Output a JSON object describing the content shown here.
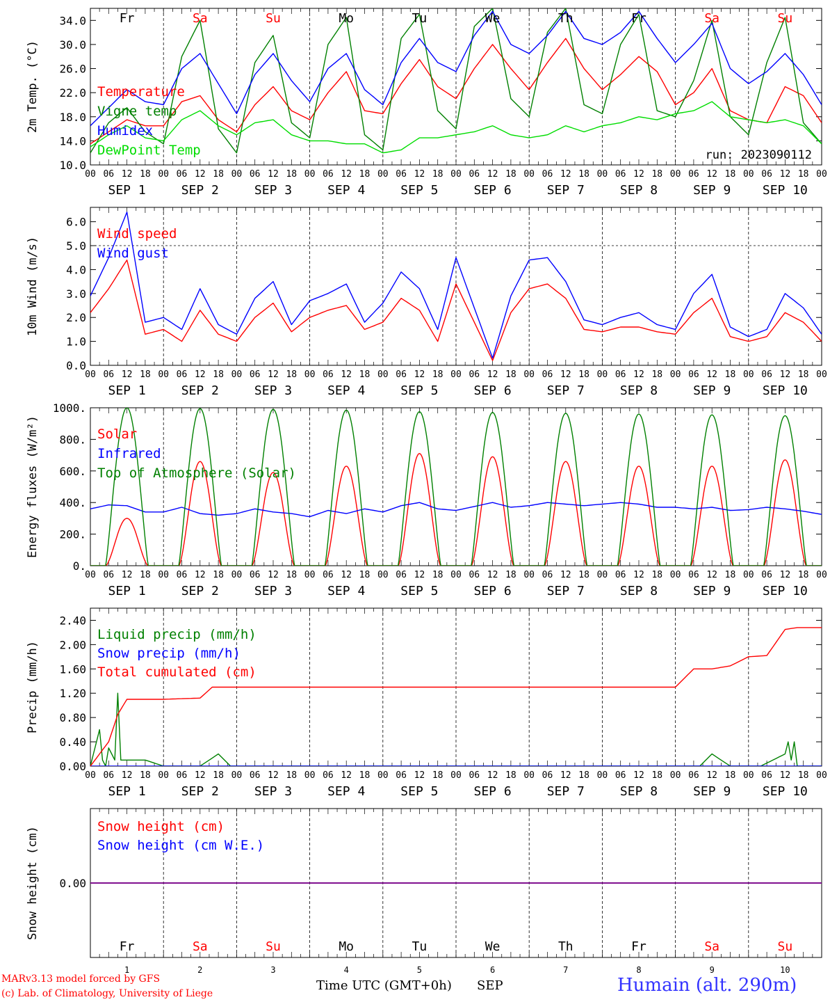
{
  "run_label": "run: 2023090112",
  "day_names": [
    "Fr",
    "Sa",
    "Su",
    "Mo",
    "Tu",
    "We",
    "Th",
    "Fr",
    "Sa",
    "Su"
  ],
  "weekend_flags": [
    false,
    true,
    true,
    false,
    false,
    false,
    false,
    false,
    true,
    true
  ],
  "date_labels": [
    "SEP  1",
    "SEP  2",
    "SEP  3",
    "SEP  4",
    "SEP  5",
    "SEP  6",
    "SEP  7",
    "SEP  8",
    "SEP  9",
    "SEP 10"
  ],
  "hour_ticks": [
    "00",
    "06",
    "12",
    "18"
  ],
  "day_numbers": [
    "1",
    "2",
    "3",
    "4",
    "5",
    "6",
    "7",
    "8",
    "9",
    "10"
  ],
  "footer": {
    "credit_model": "MARv3.13 model forced by GFS",
    "credit_lab": "(c) Lab. of Climatology, University of Liege",
    "xaxis_title": "Time UTC (GMT+0h)",
    "month": "SEP",
    "station": "Humain (alt. 290m)"
  },
  "colors": {
    "red": "#ff0000",
    "green": "#008000",
    "blue": "#0000ff",
    "lightgreen": "#00dd00",
    "purple": "#800080"
  },
  "chart_data": [
    {
      "id": "temp",
      "type": "line",
      "ylabel": "2m Temp. (°C)",
      "ylim": [
        10,
        36
      ],
      "yticks": [
        10.0,
        14.0,
        18.0,
        22.0,
        26.0,
        30.0,
        34.0
      ],
      "tick_decimals": 1,
      "x": [
        0,
        6,
        12,
        18,
        24,
        30,
        36,
        42,
        48,
        54,
        60,
        66,
        72,
        78,
        84,
        90,
        96,
        102,
        108,
        114,
        120,
        126,
        132,
        138,
        144,
        150,
        156,
        162,
        168,
        174,
        180,
        186,
        192,
        198,
        204,
        210,
        216,
        222,
        228,
        234,
        240
      ],
      "series": [
        {
          "name": "Temperature",
          "color": "red",
          "values": [
            13.5,
            15.5,
            17.5,
            16.5,
            16.5,
            20.5,
            21.5,
            17.5,
            15.5,
            20.0,
            23.0,
            19.0,
            17.5,
            22.0,
            25.5,
            19.0,
            18.5,
            23.5,
            27.5,
            23.0,
            21.0,
            26.0,
            30.0,
            26.0,
            22.5,
            27.0,
            31.0,
            26.0,
            22.5,
            25.0,
            28.0,
            25.5,
            20.0,
            22.0,
            26.0,
            19.0,
            17.5,
            17.0,
            23.0,
            21.5,
            17.0
          ]
        },
        {
          "name": "Vigne temp",
          "color": "green",
          "values": [
            12.0,
            17.0,
            19.5,
            15.5,
            13.5,
            28.0,
            34.0,
            16.0,
            12.0,
            27.0,
            31.5,
            17.0,
            14.5,
            30.0,
            34.5,
            15.0,
            12.5,
            31.0,
            35.0,
            19.0,
            16.0,
            33.0,
            36.0,
            21.0,
            18.0,
            32.0,
            36.0,
            20.0,
            18.5,
            30.0,
            35.0,
            19.0,
            18.0,
            24.0,
            34.0,
            18.0,
            15.0,
            27.0,
            34.5,
            17.0,
            13.5
          ]
        },
        {
          "name": "Humidex",
          "color": "blue",
          "values": [
            16.5,
            19.5,
            22.5,
            20.5,
            20.0,
            26.0,
            28.5,
            23.5,
            18.5,
            25.0,
            28.5,
            24.0,
            20.5,
            26.0,
            28.5,
            22.5,
            20.0,
            27.0,
            31.0,
            27.0,
            25.5,
            31.5,
            35.5,
            30.0,
            28.5,
            31.5,
            35.5,
            31.0,
            30.0,
            32.0,
            35.5,
            31.0,
            27.0,
            30.0,
            33.5,
            26.0,
            23.5,
            25.5,
            28.5,
            25.0,
            20.0
          ]
        },
        {
          "name": "DewPoint Temp",
          "color": "lightgreen",
          "values": [
            13.0,
            15.0,
            16.5,
            14.5,
            14.0,
            17.5,
            19.0,
            16.5,
            15.0,
            17.0,
            17.5,
            15.0,
            14.0,
            14.0,
            13.5,
            13.5,
            12.0,
            12.5,
            14.5,
            14.5,
            15.0,
            15.5,
            16.5,
            15.0,
            14.5,
            15.0,
            16.5,
            15.5,
            16.5,
            17.0,
            18.0,
            17.5,
            18.5,
            19.0,
            20.5,
            18.0,
            17.5,
            17.0,
            17.5,
            16.5,
            13.5
          ]
        }
      ]
    },
    {
      "id": "wind",
      "type": "line",
      "ylabel": "10m Wind (m/s)",
      "ylim": [
        0,
        6.6
      ],
      "yticks": [
        0.0,
        1.0,
        2.0,
        3.0,
        4.0,
        5.0,
        6.0
      ],
      "tick_decimals": 1,
      "ref_line": 5.0,
      "x": [
        0,
        6,
        12,
        18,
        24,
        30,
        36,
        42,
        48,
        54,
        60,
        66,
        72,
        78,
        84,
        90,
        96,
        102,
        108,
        114,
        120,
        126,
        132,
        138,
        144,
        150,
        156,
        162,
        168,
        174,
        180,
        186,
        192,
        198,
        204,
        210,
        216,
        222,
        228,
        234,
        240
      ],
      "series": [
        {
          "name": "Wind speed",
          "color": "red",
          "values": [
            2.2,
            3.2,
            4.4,
            1.3,
            1.5,
            1.0,
            2.3,
            1.3,
            1.0,
            2.0,
            2.6,
            1.4,
            2.0,
            2.3,
            2.5,
            1.5,
            1.8,
            2.8,
            2.3,
            1.0,
            3.4,
            1.8,
            0.2,
            2.2,
            3.2,
            3.4,
            2.8,
            1.5,
            1.4,
            1.6,
            1.6,
            1.4,
            1.3,
            2.2,
            2.8,
            1.2,
            1.0,
            1.2,
            2.2,
            1.8,
            1.0
          ]
        },
        {
          "name": "Wind gust",
          "color": "blue",
          "values": [
            2.9,
            4.5,
            6.4,
            1.8,
            2.0,
            1.5,
            3.2,
            1.7,
            1.3,
            2.8,
            3.5,
            1.7,
            2.7,
            3.0,
            3.4,
            1.8,
            2.6,
            3.9,
            3.2,
            1.5,
            4.5,
            2.4,
            0.3,
            2.9,
            4.4,
            4.5,
            3.5,
            1.9,
            1.7,
            2.0,
            2.2,
            1.7,
            1.5,
            3.0,
            3.8,
            1.6,
            1.2,
            1.5,
            3.0,
            2.4,
            1.3
          ]
        }
      ]
    },
    {
      "id": "energy",
      "type": "line",
      "ylabel": "Energy fluxes (W/m²)",
      "ylim": [
        0,
        1000
      ],
      "yticks": [
        0,
        200,
        400,
        600,
        800,
        1000
      ],
      "tick_decimals": -1,
      "series": [
        {
          "name": "Solar",
          "color": "red",
          "daily_peak": [
            300,
            660,
            590,
            630,
            710,
            690,
            660,
            630,
            630,
            670
          ]
        },
        {
          "name": "Infrared",
          "color": "blue",
          "values": [
            360,
            385,
            380,
            340,
            340,
            370,
            330,
            320,
            330,
            360,
            340,
            330,
            310,
            350,
            330,
            360,
            340,
            380,
            400,
            360,
            350,
            375,
            400,
            370,
            380,
            400,
            390,
            380,
            390,
            400,
            390,
            370,
            370,
            360,
            370,
            350,
            355,
            370,
            360,
            345,
            325
          ],
          "x": [
            0,
            6,
            12,
            18,
            24,
            30,
            36,
            42,
            48,
            54,
            60,
            66,
            72,
            78,
            84,
            90,
            96,
            102,
            108,
            114,
            120,
            126,
            132,
            138,
            144,
            150,
            156,
            162,
            168,
            174,
            180,
            186,
            192,
            198,
            204,
            210,
            216,
            222,
            228,
            234,
            240
          ]
        },
        {
          "name": "Top of Atmosphere (Solar)",
          "color": "green",
          "daily_peak": [
            1000,
            995,
            990,
            985,
            975,
            970,
            965,
            960,
            955,
            950
          ]
        }
      ],
      "daylight_hours": [
        5,
        19
      ]
    },
    {
      "id": "precip",
      "type": "line",
      "ylabel": "Precip (mm/h)",
      "ylim": [
        0,
        2.6
      ],
      "yticks": [
        0.0,
        0.4,
        0.8,
        1.2,
        1.6,
        2.0,
        2.4
      ],
      "tick_decimals": 2,
      "series": [
        {
          "name": "Liquid precip (mm/h)",
          "color": "green",
          "x": [
            0,
            3,
            4,
            5,
            6,
            8,
            9,
            10,
            11,
            12,
            18,
            24,
            36,
            42,
            46,
            200,
            204,
            210,
            220,
            224,
            228,
            229,
            230,
            231,
            232,
            236,
            240,
            266,
            270,
            274,
            276,
            278
          ],
          "values": [
            0.0,
            0.6,
            0.1,
            0.0,
            0.3,
            0.1,
            1.2,
            0.1,
            0.1,
            0.1,
            0.1,
            0.0,
            0.0,
            0.2,
            0.0,
            0.0,
            0.2,
            0.0,
            0.0,
            0.1,
            0.2,
            0.4,
            0.1,
            0.4,
            0.0,
            0.0,
            0.0,
            0.0,
            0.15,
            0.1,
            0.0,
            0.0
          ]
        },
        {
          "name": "Snow precip (mm/h)",
          "color": "blue",
          "x": [
            0,
            240
          ],
          "values": [
            0.0,
            0.0
          ]
        },
        {
          "name": "Total cumulated (cm)",
          "color": "red",
          "x": [
            0,
            6,
            9,
            12,
            18,
            24,
            36,
            40,
            44,
            48,
            192,
            198,
            204,
            210,
            216,
            222,
            228,
            232,
            240,
            252,
            258,
            264,
            270,
            276,
            288
          ],
          "values": [
            0.0,
            0.4,
            0.85,
            1.1,
            1.1,
            1.1,
            1.12,
            1.3,
            1.3,
            1.3,
            1.3,
            1.6,
            1.6,
            1.65,
            1.8,
            1.82,
            2.25,
            2.28,
            2.28,
            2.3,
            2.5,
            2.5,
            2.5,
            2.5,
            2.5
          ]
        }
      ]
    },
    {
      "id": "snow",
      "type": "line",
      "ylabel": "Snow height (cm)",
      "ylim": [
        -1,
        1
      ],
      "yticks": [
        0.0
      ],
      "tick_decimals": 2,
      "x": [
        0,
        240
      ],
      "series": [
        {
          "name": "Snow height (cm)",
          "color": "red",
          "values": [
            0.0,
            0.0
          ]
        },
        {
          "name": "Snow height (cm W.E.)",
          "color": "blue",
          "values": [
            0.0,
            0.0
          ]
        }
      ]
    }
  ]
}
